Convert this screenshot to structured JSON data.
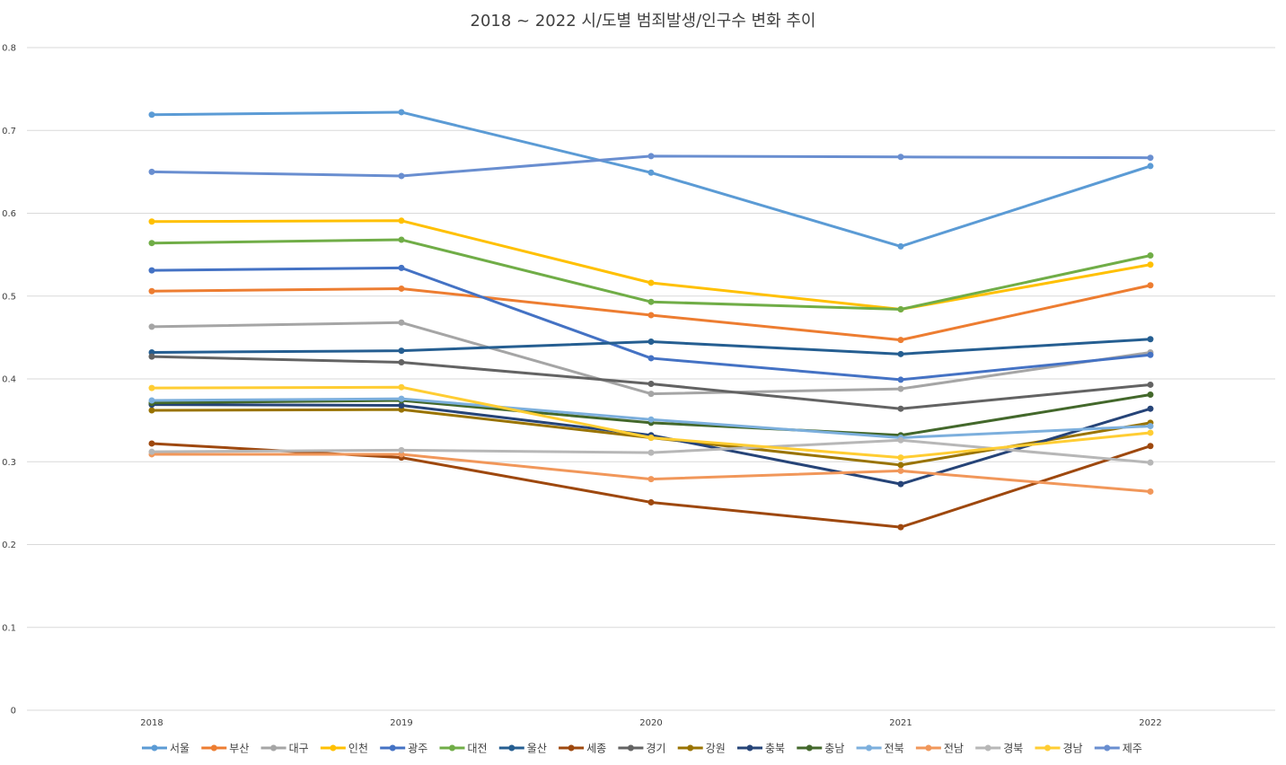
{
  "chart_data": {
    "type": "line",
    "title": "2018 ~ 2022 시/도별 범죄발생/인구수 변화 추이",
    "xlabel": "",
    "ylabel": "",
    "categories": [
      "2018",
      "2019",
      "2020",
      "2021",
      "2022"
    ],
    "ylim": [
      0,
      0.8
    ],
    "yticks": [
      "0",
      "0.1",
      "0.2",
      "0.3",
      "0.4",
      "0.5",
      "0.6",
      "0.7",
      "0.8"
    ],
    "grid": true,
    "legend_position": "bottom",
    "series": [
      {
        "name": "서울",
        "color": "#5b9bd5",
        "values": [
          0.719,
          0.722,
          0.649,
          0.56,
          0.657
        ]
      },
      {
        "name": "부산",
        "color": "#ed7d31",
        "values": [
          0.506,
          0.509,
          0.477,
          0.447,
          0.513
        ]
      },
      {
        "name": "대구",
        "color": "#a5a5a5",
        "values": [
          0.463,
          0.468,
          0.382,
          0.388,
          0.432
        ]
      },
      {
        "name": "인천",
        "color": "#ffc000",
        "values": [
          0.59,
          0.591,
          0.516,
          0.484,
          0.538
        ]
      },
      {
        "name": "광주",
        "color": "#4472c4",
        "values": [
          0.531,
          0.534,
          0.425,
          0.399,
          0.429
        ]
      },
      {
        "name": "대전",
        "color": "#70ad47",
        "values": [
          0.564,
          0.568,
          0.493,
          0.484,
          0.549
        ]
      },
      {
        "name": "울산",
        "color": "#255e91",
        "values": [
          0.432,
          0.434,
          0.445,
          0.43,
          0.448
        ]
      },
      {
        "name": "세종",
        "color": "#9e480e",
        "values": [
          0.322,
          0.305,
          0.251,
          0.221,
          0.319
        ]
      },
      {
        "name": "경기",
        "color": "#636363",
        "values": [
          0.427,
          0.42,
          0.394,
          0.364,
          0.393
        ]
      },
      {
        "name": "강원",
        "color": "#997300",
        "values": [
          0.362,
          0.363,
          0.329,
          0.296,
          0.347
        ]
      },
      {
        "name": "충북",
        "color": "#264478",
        "values": [
          0.369,
          0.368,
          0.332,
          0.273,
          0.364
        ]
      },
      {
        "name": "충남",
        "color": "#43682b",
        "values": [
          0.371,
          0.374,
          0.347,
          0.332,
          0.381
        ]
      },
      {
        "name": "전북",
        "color": "#7cafdd",
        "values": [
          0.374,
          0.376,
          0.351,
          0.329,
          0.343
        ]
      },
      {
        "name": "전남",
        "color": "#f1975a",
        "values": [
          0.309,
          0.309,
          0.279,
          0.289,
          0.264
        ]
      },
      {
        "name": "경북",
        "color": "#b7b7b7",
        "values": [
          0.312,
          0.314,
          0.311,
          0.326,
          0.299
        ]
      },
      {
        "name": "경남",
        "color": "#ffcd33",
        "values": [
          0.389,
          0.39,
          0.329,
          0.305,
          0.335
        ]
      },
      {
        "name": "제주",
        "color": "#698ed0",
        "values": [
          0.65,
          0.645,
          0.669,
          0.668,
          0.667
        ]
      }
    ]
  }
}
